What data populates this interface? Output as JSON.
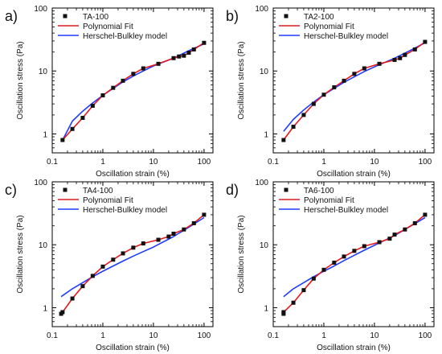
{
  "figure": {
    "shared": {
      "xlabel": "Oscillation strain (%)",
      "ylabel": "Oscillation stress (Pa)",
      "legend_labels": [
        "Polynomial Fit",
        "Herschel-Bulkley model"
      ],
      "x_ticks": [
        "0.1",
        "1",
        "10",
        "100"
      ],
      "y_ticks": [
        "1",
        "10",
        "100"
      ],
      "colors": {
        "data": "#111111",
        "poly": "#e41a1c",
        "hb": "#1f3cff"
      }
    }
  },
  "chart_data": [
    {
      "panel_letter": "a)",
      "type": "scatter",
      "title": "",
      "xlabel": "Oscillation strain (%)",
      "ylabel": "Oscillation stress (Pa)",
      "x_scale": "log",
      "y_scale": "log",
      "xlim": [
        0.1,
        150
      ],
      "ylim": [
        0.5,
        100
      ],
      "legend_position": "top-left",
      "series": [
        {
          "name": "TA-100",
          "kind": "markers",
          "x": [
            0.16,
            0.25,
            0.4,
            0.63,
            1.0,
            1.6,
            2.5,
            4.0,
            6.3,
            12.5,
            25,
            32,
            40,
            50,
            63,
            100
          ],
          "y": [
            0.8,
            1.2,
            1.8,
            2.8,
            4.1,
            5.4,
            7.0,
            9.0,
            11.0,
            13.0,
            16.0,
            17.0,
            17.5,
            19.5,
            22,
            28
          ]
        },
        {
          "name": "Polynomial Fit",
          "kind": "line",
          "color": "#e41a1c",
          "x": [
            0.16,
            0.25,
            0.4,
            0.63,
            1.0,
            1.6,
            2.5,
            4.0,
            6.3,
            12.5,
            25,
            32,
            40,
            50,
            63,
            100
          ],
          "y": [
            0.8,
            1.2,
            1.8,
            2.8,
            4.1,
            5.4,
            7.0,
            9.0,
            11.0,
            13.0,
            16.0,
            17.0,
            17.5,
            19.5,
            22,
            28
          ]
        },
        {
          "name": "Herschel-Bulkley model",
          "kind": "line",
          "color": "#1f3cff",
          "x": [
            0.16,
            0.25,
            0.4,
            0.63,
            1.0,
            1.6,
            2.5,
            4.0,
            6.3,
            10,
            25,
            50,
            100
          ],
          "y": [
            0.8,
            1.6,
            2.3,
            3.1,
            4.1,
            5.3,
            6.7,
            8.3,
            10.0,
            12.0,
            16.0,
            21.0,
            27.0
          ]
        }
      ]
    },
    {
      "panel_letter": "b)",
      "type": "scatter",
      "title": "",
      "xlabel": "Oscillation strain (%)",
      "ylabel": "Oscillation stress (Pa)",
      "x_scale": "log",
      "y_scale": "log",
      "xlim": [
        0.1,
        150
      ],
      "ylim": [
        0.5,
        100
      ],
      "legend_position": "top-left",
      "series": [
        {
          "name": "TA2-100",
          "kind": "markers",
          "x": [
            0.16,
            0.25,
            0.4,
            0.63,
            1.0,
            1.6,
            2.5,
            4.0,
            6.3,
            12.5,
            25,
            32,
            40,
            63,
            100
          ],
          "y": [
            0.8,
            1.3,
            2.0,
            3.0,
            4.2,
            5.5,
            7.0,
            9.0,
            11.0,
            13.0,
            15.0,
            16.0,
            18.0,
            22,
            29
          ]
        },
        {
          "name": "Polynomial Fit",
          "kind": "line",
          "color": "#e41a1c",
          "x": [
            0.16,
            0.25,
            0.4,
            0.63,
            1.0,
            1.6,
            2.5,
            4.0,
            6.3,
            12.5,
            25,
            32,
            40,
            63,
            100
          ],
          "y": [
            0.8,
            1.3,
            2.0,
            3.0,
            4.2,
            5.5,
            7.0,
            9.0,
            11.0,
            13.0,
            15.0,
            16.0,
            18.0,
            22,
            29
          ]
        },
        {
          "name": "Herschel-Bulkley model",
          "kind": "line",
          "color": "#1f3cff",
          "x": [
            0.16,
            0.25,
            0.4,
            0.63,
            1.0,
            1.6,
            2.5,
            4.0,
            6.3,
            10,
            25,
            50,
            100
          ],
          "y": [
            1.1,
            1.7,
            2.4,
            3.2,
            4.2,
            5.3,
            6.6,
            8.1,
            9.8,
            11.6,
            16.0,
            21.0,
            28.0
          ]
        }
      ]
    },
    {
      "panel_letter": "c)",
      "type": "scatter",
      "title": "",
      "xlabel": "Oscillation strain (%)",
      "ylabel": "Oscillation stress (Pa)",
      "x_scale": "log",
      "y_scale": "log",
      "xlim": [
        0.1,
        150
      ],
      "ylim": [
        0.5,
        100
      ],
      "legend_position": "top-left",
      "series": [
        {
          "name": "TA4-100",
          "kind": "markers",
          "x": [
            0.15,
            0.16,
            0.25,
            0.4,
            0.63,
            1.0,
            1.6,
            2.5,
            4.0,
            6.3,
            12.5,
            20,
            25,
            40,
            63,
            100
          ],
          "y": [
            0.8,
            0.85,
            1.4,
            2.2,
            3.2,
            4.5,
            5.8,
            7.3,
            9.0,
            10.5,
            12.0,
            13.5,
            15.0,
            17.5,
            22,
            30
          ]
        },
        {
          "name": "Polynomial Fit",
          "kind": "line",
          "color": "#e41a1c",
          "x": [
            0.15,
            0.16,
            0.25,
            0.4,
            0.63,
            1.0,
            1.6,
            2.5,
            4.0,
            6.3,
            12.5,
            20,
            25,
            40,
            63,
            100
          ],
          "y": [
            0.8,
            0.85,
            1.4,
            2.2,
            3.2,
            4.5,
            5.8,
            7.3,
            9.0,
            10.5,
            12.0,
            13.5,
            15.0,
            17.5,
            22,
            30
          ]
        },
        {
          "name": "Herschel-Bulkley model",
          "kind": "line",
          "color": "#1f3cff",
          "x": [
            0.15,
            0.25,
            0.4,
            0.63,
            1.0,
            1.6,
            2.5,
            4.0,
            6.3,
            10,
            25,
            50,
            100
          ],
          "y": [
            1.5,
            2.0,
            2.5,
            3.1,
            3.8,
            4.6,
            5.5,
            6.6,
            7.8,
            9.2,
            13.5,
            19.0,
            27.0
          ]
        }
      ]
    },
    {
      "panel_letter": "d)",
      "type": "scatter",
      "title": "",
      "xlabel": "Oscillation strain (%)",
      "ylabel": "Oscillation stress (Pa)",
      "x_scale": "log",
      "y_scale": "log",
      "xlim": [
        0.1,
        150
      ],
      "ylim": [
        0.5,
        100
      ],
      "legend_position": "top-left",
      "series": [
        {
          "name": "TA6-100",
          "kind": "markers",
          "x": [
            0.16,
            0.16,
            0.25,
            0.4,
            0.63,
            1.0,
            1.6,
            2.5,
            4.0,
            6.3,
            12.5,
            20,
            25,
            40,
            63,
            100
          ],
          "y": [
            0.8,
            0.85,
            1.2,
            1.9,
            2.9,
            4.0,
            5.2,
            6.5,
            8.0,
            9.5,
            11.0,
            12.5,
            14.5,
            17.5,
            22,
            30
          ]
        },
        {
          "name": "Polynomial Fit",
          "kind": "line",
          "color": "#e41a1c",
          "x": [
            0.16,
            0.16,
            0.25,
            0.4,
            0.63,
            1.0,
            1.6,
            2.5,
            4.0,
            6.3,
            12.5,
            20,
            25,
            40,
            63,
            100
          ],
          "y": [
            0.8,
            0.85,
            1.2,
            1.9,
            2.9,
            4.0,
            5.2,
            6.5,
            8.0,
            9.5,
            11.0,
            12.5,
            14.5,
            17.5,
            22,
            30
          ]
        },
        {
          "name": "Herschel-Bulkley model",
          "kind": "line",
          "color": "#1f3cff",
          "x": [
            0.16,
            0.25,
            0.4,
            0.63,
            1.0,
            1.6,
            2.5,
            4.0,
            6.3,
            10,
            25,
            50,
            100
          ],
          "y": [
            1.5,
            2.0,
            2.5,
            3.1,
            3.8,
            4.6,
            5.6,
            6.8,
            8.2,
            9.8,
            14.0,
            19.5,
            27.0
          ]
        }
      ]
    }
  ]
}
